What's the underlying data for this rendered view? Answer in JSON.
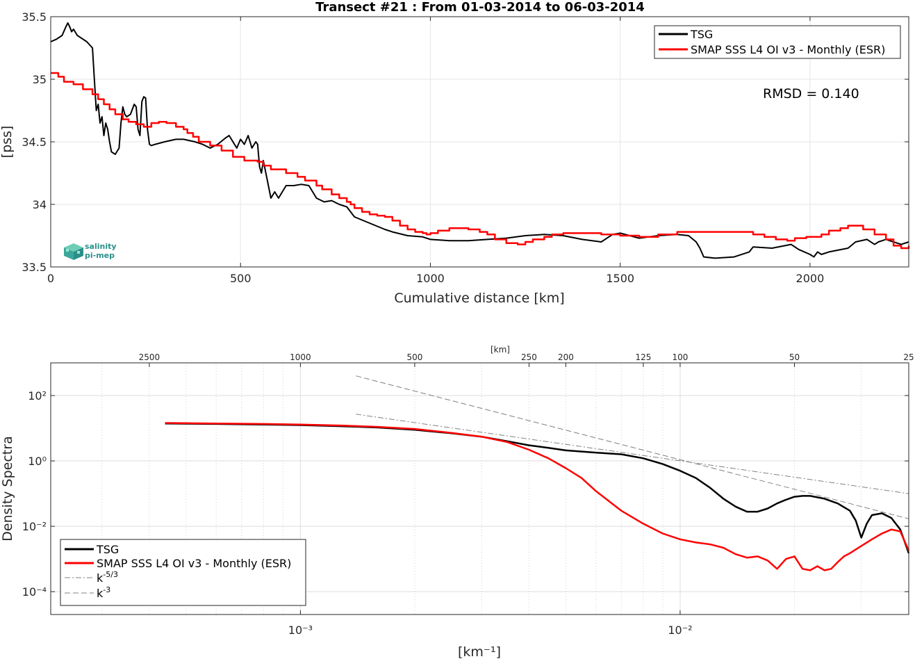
{
  "chart_data": [
    {
      "type": "line",
      "title": "Transect #21 : From 01-03-2014 to 06-03-2014",
      "xlabel": "Cumulative distance [km]",
      "ylabel": "[pss]",
      "xlim": [
        0,
        2260
      ],
      "ylim": [
        33.5,
        35.5
      ],
      "xticks": [
        "0",
        "500",
        "1000",
        "1500",
        "2000"
      ],
      "yticks": [
        "33.5",
        "34",
        "34.5",
        "35",
        "35.5"
      ],
      "grid": true,
      "legend_position": "top-right",
      "annotation": "RMSD = 0.140",
      "logo": {
        "line1": "salinity",
        "line2": "pi-mep"
      },
      "series": [
        {
          "name": "TSG",
          "color": "#000000",
          "x": [
            0,
            15,
            30,
            40,
            45,
            50,
            55,
            60,
            70,
            80,
            95,
            110,
            115,
            120,
            125,
            130,
            135,
            140,
            145,
            150,
            155,
            160,
            170,
            180,
            185,
            190,
            195,
            200,
            210,
            220,
            225,
            230,
            235,
            240,
            245,
            250,
            255,
            260,
            265,
            275,
            300,
            330,
            350,
            380,
            400,
            420,
            440,
            460,
            470,
            480,
            490,
            500,
            510,
            520,
            530,
            540,
            545,
            550,
            555,
            560,
            570,
            580,
            590,
            600,
            620,
            640,
            660,
            680,
            700,
            720,
            740,
            760,
            780,
            800,
            840,
            880,
            900,
            940,
            980,
            1000,
            1050,
            1100,
            1150,
            1200,
            1250,
            1300,
            1350,
            1400,
            1450,
            1480,
            1500,
            1550,
            1600,
            1650,
            1680,
            1700,
            1710,
            1720,
            1750,
            1800,
            1840,
            1850,
            1900,
            1950,
            1970,
            2000,
            2010,
            2020,
            2030,
            2050,
            2100,
            2120,
            2150,
            2170,
            2180,
            2200,
            2220,
            2240,
            2260
          ],
          "y": [
            35.3,
            35.32,
            35.35,
            35.42,
            35.45,
            35.42,
            35.38,
            35.4,
            35.35,
            35.33,
            35.3,
            35.25,
            35.0,
            34.75,
            34.8,
            34.65,
            34.7,
            34.55,
            34.65,
            34.6,
            34.5,
            34.42,
            34.4,
            34.45,
            34.65,
            34.78,
            34.72,
            34.7,
            34.72,
            34.8,
            34.78,
            34.6,
            34.55,
            34.82,
            34.86,
            34.85,
            34.6,
            34.48,
            34.47,
            34.48,
            34.5,
            34.52,
            34.52,
            34.5,
            34.48,
            34.45,
            34.48,
            34.53,
            34.55,
            34.5,
            34.45,
            34.52,
            34.48,
            34.55,
            34.45,
            34.5,
            34.48,
            34.3,
            34.25,
            34.35,
            34.2,
            34.05,
            34.1,
            34.05,
            34.15,
            34.15,
            34.16,
            34.15,
            34.05,
            34.02,
            34.03,
            34.0,
            33.98,
            33.9,
            33.85,
            33.8,
            33.78,
            33.75,
            33.74,
            33.72,
            33.71,
            33.71,
            33.72,
            33.73,
            33.75,
            33.76,
            33.75,
            33.72,
            33.7,
            33.76,
            33.77,
            33.73,
            33.75,
            33.76,
            33.75,
            33.7,
            33.65,
            33.58,
            33.57,
            33.58,
            33.62,
            33.66,
            33.65,
            33.68,
            33.64,
            33.6,
            33.58,
            33.62,
            33.6,
            33.62,
            33.65,
            33.7,
            33.72,
            33.68,
            33.7,
            33.72,
            33.7,
            33.68,
            33.7
          ]
        },
        {
          "name": "SMAP SSS L4 OI v3 - Monthly (ESR)",
          "color": "#ff0000",
          "x": [
            0,
            20,
            35,
            60,
            85,
            110,
            125,
            140,
            155,
            170,
            190,
            205,
            225,
            245,
            265,
            285,
            305,
            330,
            350,
            360,
            375,
            390,
            420,
            450,
            480,
            510,
            545,
            560,
            580,
            620,
            650,
            670,
            700,
            715,
            740,
            760,
            780,
            790,
            800,
            820,
            840,
            860,
            880,
            900,
            920,
            940,
            960,
            980,
            990,
            1000,
            1020,
            1050,
            1100,
            1130,
            1150,
            1170,
            1200,
            1230,
            1250,
            1270,
            1300,
            1320,
            1350,
            1400,
            1450,
            1500,
            1550,
            1580,
            1600,
            1650,
            1700,
            1750,
            1800,
            1850,
            1880,
            1910,
            1940,
            1960,
            1990,
            2030,
            2050,
            2080,
            2100,
            2140,
            2170,
            2200,
            2220,
            2240,
            2260
          ],
          "y": [
            35.05,
            35.02,
            34.98,
            34.96,
            34.92,
            34.88,
            34.84,
            34.8,
            34.76,
            34.72,
            34.68,
            34.66,
            34.64,
            34.62,
            34.65,
            34.66,
            34.65,
            34.62,
            34.6,
            34.57,
            34.54,
            34.5,
            34.47,
            34.43,
            34.38,
            34.35,
            34.34,
            34.31,
            34.28,
            34.25,
            34.22,
            34.19,
            34.15,
            34.12,
            34.08,
            34.05,
            34.02,
            34.0,
            33.97,
            33.94,
            33.92,
            33.91,
            33.9,
            33.87,
            33.83,
            33.8,
            33.78,
            33.77,
            33.76,
            33.77,
            33.79,
            33.81,
            33.8,
            33.78,
            33.76,
            33.72,
            33.69,
            33.68,
            33.7,
            33.72,
            33.74,
            33.76,
            33.77,
            33.77,
            33.76,
            33.75,
            33.74,
            33.74,
            33.76,
            33.78,
            33.78,
            33.78,
            33.78,
            33.76,
            33.74,
            33.72,
            33.71,
            33.73,
            33.74,
            33.76,
            33.79,
            33.81,
            33.83,
            33.8,
            33.76,
            33.72,
            33.67,
            33.65,
            33.67
          ]
        }
      ]
    },
    {
      "type": "line",
      "xscale": "log",
      "yscale": "log",
      "xlabel": "[km⁻¹]",
      "ylabel": "Density Spectra",
      "top_axis_label": "[km]",
      "xlim": [
        0.00022,
        0.04
      ],
      "ylim": [
        2e-05,
        1000
      ],
      "xticks": [
        "10⁻³",
        "10⁻²"
      ],
      "yticks": [
        "10⁻⁴",
        "10⁻²",
        "10⁰",
        "10²"
      ],
      "top_ticks": [
        "2500",
        "1000",
        "500",
        "250",
        "200",
        "125",
        "100",
        "50",
        "25"
      ],
      "grid": true,
      "legend_position": "bottom-left",
      "series": [
        {
          "name": "TSG",
          "color": "#000000",
          "style": "solid",
          "x": [
            0.00044,
            0.0006,
            0.0008,
            0.001,
            0.0013,
            0.0016,
            0.002,
            0.0025,
            0.003,
            0.0035,
            0.004,
            0.0045,
            0.005,
            0.006,
            0.007,
            0.008,
            0.009,
            0.01,
            0.011,
            0.012,
            0.013,
            0.014,
            0.015,
            0.016,
            0.017,
            0.018,
            0.019,
            0.02,
            0.021,
            0.022,
            0.024,
            0.026,
            0.028,
            0.029,
            0.03,
            0.031,
            0.032,
            0.034,
            0.036,
            0.038,
            0.04
          ],
          "y": [
            14,
            13.5,
            13,
            12.5,
            11.5,
            10.5,
            9,
            7,
            5.5,
            4.0,
            3.0,
            2.5,
            2.1,
            1.8,
            1.6,
            1.2,
            0.8,
            0.5,
            0.3,
            0.15,
            0.07,
            0.04,
            0.028,
            0.028,
            0.035,
            0.05,
            0.065,
            0.08,
            0.085,
            0.085,
            0.07,
            0.05,
            0.03,
            0.015,
            0.0045,
            0.012,
            0.022,
            0.025,
            0.018,
            0.008,
            0.0015
          ]
        },
        {
          "name": "SMAP SSS L4 OI v3 - Monthly (ESR)",
          "color": "#ff0000",
          "style": "solid",
          "x": [
            0.00044,
            0.0006,
            0.0008,
            0.001,
            0.0013,
            0.0016,
            0.002,
            0.0025,
            0.003,
            0.0035,
            0.004,
            0.0045,
            0.005,
            0.0055,
            0.006,
            0.007,
            0.008,
            0.009,
            0.01,
            0.011,
            0.012,
            0.013,
            0.014,
            0.015,
            0.016,
            0.017,
            0.018,
            0.019,
            0.02,
            0.021,
            0.022,
            0.023,
            0.024,
            0.025,
            0.026,
            0.027,
            0.028,
            0.03,
            0.032,
            0.034,
            0.036,
            0.038,
            0.04
          ],
          "y": [
            14.5,
            14,
            13.5,
            13,
            12,
            11,
            9.5,
            7.2,
            5.5,
            3.8,
            2.2,
            1.2,
            0.6,
            0.3,
            0.12,
            0.03,
            0.012,
            0.006,
            0.004,
            0.0032,
            0.0028,
            0.0022,
            0.0014,
            0.0011,
            0.0012,
            0.0009,
            0.0005,
            0.001,
            0.0012,
            0.0005,
            0.00045,
            0.0006,
            0.00045,
            0.0005,
            0.0008,
            0.0012,
            0.0015,
            0.0025,
            0.004,
            0.006,
            0.008,
            0.007,
            0.0018
          ]
        },
        {
          "name": "k⁻⁵ᐟ³",
          "legend_base": "k",
          "legend_sup": "-5/3",
          "color": "#808080",
          "style": "dashdot",
          "x": [
            0.0014,
            0.04
          ],
          "y": [
            27,
            0.1
          ]
        },
        {
          "name": "k⁻³",
          "legend_base": "k",
          "legend_sup": "-3",
          "color": "#808080",
          "style": "dashed",
          "x": [
            0.0014,
            0.04
          ],
          "y": [
            400,
            0.017
          ]
        }
      ]
    }
  ]
}
